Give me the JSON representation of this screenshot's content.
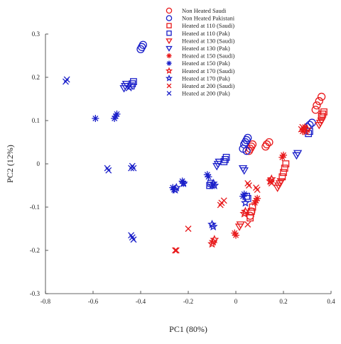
{
  "chart_data": {
    "type": "scatter",
    "title": "",
    "xlabel": "PC1 (80%)",
    "ylabel": "PC2 (12%)",
    "xlim": [
      -0.8,
      0.4
    ],
    "ylim": [
      -0.3,
      0.3
    ],
    "xticks": [
      "-0.8",
      "-0.6",
      "-0.4",
      "-0.2",
      "0",
      "0.2",
      "0.4"
    ],
    "yticks": [
      "-0.3",
      "-0.2",
      "-0.1",
      "0",
      "0.1",
      "0.2",
      "0.3"
    ],
    "grid": false,
    "legend_position": "top-right",
    "colors": {
      "saudi": "#e8191b",
      "pakistani": "#1a1fc9"
    },
    "series": [
      {
        "name": "Non Heated Saudi",
        "marker": "circle",
        "color_key": "saudi",
        "points": [
          [
            0.36,
            0.155
          ],
          [
            0.35,
            0.145
          ],
          [
            0.34,
            0.135
          ],
          [
            0.335,
            0.125
          ],
          [
            0.14,
            0.05
          ],
          [
            0.13,
            0.045
          ],
          [
            0.125,
            0.04
          ],
          [
            0.07,
            0.045
          ],
          [
            0.065,
            0.04
          ],
          [
            0.06,
            0.035
          ],
          [
            0.055,
            0.03
          ],
          [
            0.06,
            -0.12
          ],
          [
            0.065,
            -0.11
          ]
        ]
      },
      {
        "name": "Non Heated Pakistani",
        "marker": "circle",
        "color_key": "pakistani",
        "points": [
          [
            -0.39,
            0.275
          ],
          [
            -0.395,
            0.27
          ],
          [
            -0.4,
            0.265
          ],
          [
            0.05,
            0.06
          ],
          [
            0.045,
            0.055
          ],
          [
            0.04,
            0.05
          ],
          [
            0.035,
            0.045
          ],
          [
            0.32,
            0.095
          ],
          [
            0.31,
            0.09
          ],
          [
            0.3,
            0.085
          ],
          [
            0.03,
            0.035
          ],
          [
            0.045,
            0.03
          ]
        ]
      },
      {
        "name": "Heated at 110 (Saudi)",
        "marker": "square",
        "color_key": "saudi",
        "points": [
          [
            0.37,
            0.12
          ],
          [
            0.365,
            0.115
          ],
          [
            0.36,
            0.11
          ],
          [
            0.21,
            0.0
          ],
          [
            0.205,
            -0.01
          ],
          [
            0.2,
            -0.02
          ],
          [
            0.195,
            -0.03
          ],
          [
            0.07,
            -0.1
          ],
          [
            0.065,
            -0.11
          ],
          [
            0.06,
            -0.125
          ]
        ]
      },
      {
        "name": "Heated at 110 (Pak)",
        "marker": "square",
        "color_key": "pakistani",
        "points": [
          [
            -0.43,
            0.19
          ],
          [
            -0.435,
            0.185
          ],
          [
            -0.44,
            0.18
          ],
          [
            -0.04,
            0.015
          ],
          [
            -0.045,
            0.01
          ],
          [
            -0.05,
            0.005
          ],
          [
            0.31,
            0.075
          ],
          [
            0.305,
            0.07
          ],
          [
            0.05,
            -0.08
          ],
          [
            0.045,
            -0.075
          ],
          [
            -0.11,
            -0.05
          ],
          [
            -0.105,
            -0.045
          ]
        ]
      },
      {
        "name": "Heated at 130 (Saudi)",
        "marker": "triangle-down",
        "color_key": "saudi",
        "points": [
          [
            0.36,
            0.1
          ],
          [
            0.355,
            0.095
          ],
          [
            0.35,
            0.09
          ],
          [
            0.19,
            -0.04
          ],
          [
            0.185,
            -0.045
          ],
          [
            0.18,
            -0.05
          ],
          [
            0.175,
            -0.055
          ],
          [
            0.02,
            -0.14
          ],
          [
            0.015,
            -0.145
          ]
        ]
      },
      {
        "name": "Heated at 130  (Pak)",
        "marker": "triangle-down",
        "color_key": "pakistani",
        "points": [
          [
            -0.46,
            0.185
          ],
          [
            -0.465,
            0.18
          ],
          [
            -0.47,
            0.175
          ],
          [
            -0.07,
            0.005
          ],
          [
            -0.075,
            0.0
          ],
          [
            -0.08,
            -0.005
          ],
          [
            0.26,
            0.025
          ],
          [
            0.255,
            0.02
          ],
          [
            0.03,
            -0.01
          ],
          [
            0.035,
            -0.015
          ]
        ]
      },
      {
        "name": "Heated at 150 (Saudi)",
        "marker": "asterisk",
        "color_key": "saudi",
        "points": [
          [
            0.29,
            0.085
          ],
          [
            0.285,
            0.08
          ],
          [
            0.28,
            0.075
          ],
          [
            0.2,
            0.02
          ],
          [
            0.195,
            0.015
          ],
          [
            0.09,
            -0.08
          ],
          [
            0.085,
            -0.085
          ],
          [
            0.08,
            -0.09
          ],
          [
            0.0,
            -0.165
          ],
          [
            -0.005,
            -0.16
          ]
        ]
      },
      {
        "name": "Heated at 150 (Pak)",
        "marker": "asterisk",
        "color_key": "pakistani",
        "points": [
          [
            -0.5,
            0.115
          ],
          [
            -0.505,
            0.11
          ],
          [
            -0.51,
            0.105
          ],
          [
            -0.59,
            0.105
          ],
          [
            -0.26,
            -0.06
          ],
          [
            -0.265,
            -0.055
          ],
          [
            -0.22,
            -0.045
          ],
          [
            -0.225,
            -0.04
          ],
          [
            -0.12,
            -0.025
          ],
          [
            -0.115,
            -0.03
          ],
          [
            0.03,
            -0.075
          ],
          [
            0.035,
            -0.07
          ]
        ]
      },
      {
        "name": "Heated at 170 (Saudi)",
        "marker": "star",
        "color_key": "saudi",
        "points": [
          [
            0.3,
            0.08
          ],
          [
            0.295,
            0.075
          ],
          [
            0.15,
            -0.035
          ],
          [
            0.145,
            -0.04
          ],
          [
            0.04,
            -0.11
          ],
          [
            0.035,
            -0.115
          ],
          [
            -0.09,
            -0.175
          ],
          [
            -0.095,
            -0.18
          ],
          [
            -0.1,
            -0.185
          ]
        ]
      },
      {
        "name": "Heated at 170 (Pak)",
        "marker": "star",
        "color_key": "pakistani",
        "points": [
          [
            -0.255,
            -0.06
          ],
          [
            -0.25,
            -0.055
          ],
          [
            -0.22,
            -0.045
          ],
          [
            -0.1,
            -0.05
          ],
          [
            -0.095,
            -0.045
          ],
          [
            -0.09,
            -0.05
          ],
          [
            -0.1,
            -0.14
          ],
          [
            -0.095,
            -0.145
          ],
          [
            0.04,
            -0.09
          ]
        ]
      },
      {
        "name": "Heated at 200  (Saudi)",
        "marker": "x",
        "color_key": "saudi",
        "points": [
          [
            0.28,
            0.085
          ],
          [
            0.275,
            0.08
          ],
          [
            0.15,
            -0.045
          ],
          [
            0.145,
            -0.04
          ],
          [
            0.05,
            -0.045
          ],
          [
            0.055,
            -0.05
          ],
          [
            -0.06,
            -0.09
          ],
          [
            -0.065,
            -0.095
          ],
          [
            -0.05,
            -0.085
          ],
          [
            0.05,
            -0.14
          ],
          [
            -0.2,
            -0.15
          ],
          [
            -0.25,
            -0.2
          ],
          [
            -0.255,
            -0.2
          ],
          [
            0.09,
            -0.06
          ],
          [
            0.085,
            -0.055
          ]
        ]
      },
      {
        "name": "Heated at 200 (Pak)",
        "marker": "x",
        "color_key": "pakistani",
        "points": [
          [
            -0.71,
            0.195
          ],
          [
            -0.715,
            0.19
          ],
          [
            -0.54,
            -0.01
          ],
          [
            -0.535,
            -0.015
          ],
          [
            -0.44,
            -0.01
          ],
          [
            -0.435,
            -0.005
          ],
          [
            -0.43,
            -0.01
          ],
          [
            -0.44,
            -0.165
          ],
          [
            -0.435,
            -0.17
          ],
          [
            -0.43,
            -0.175
          ],
          [
            -0.45,
            0.175
          ],
          [
            -0.445,
            0.18
          ]
        ]
      }
    ]
  }
}
